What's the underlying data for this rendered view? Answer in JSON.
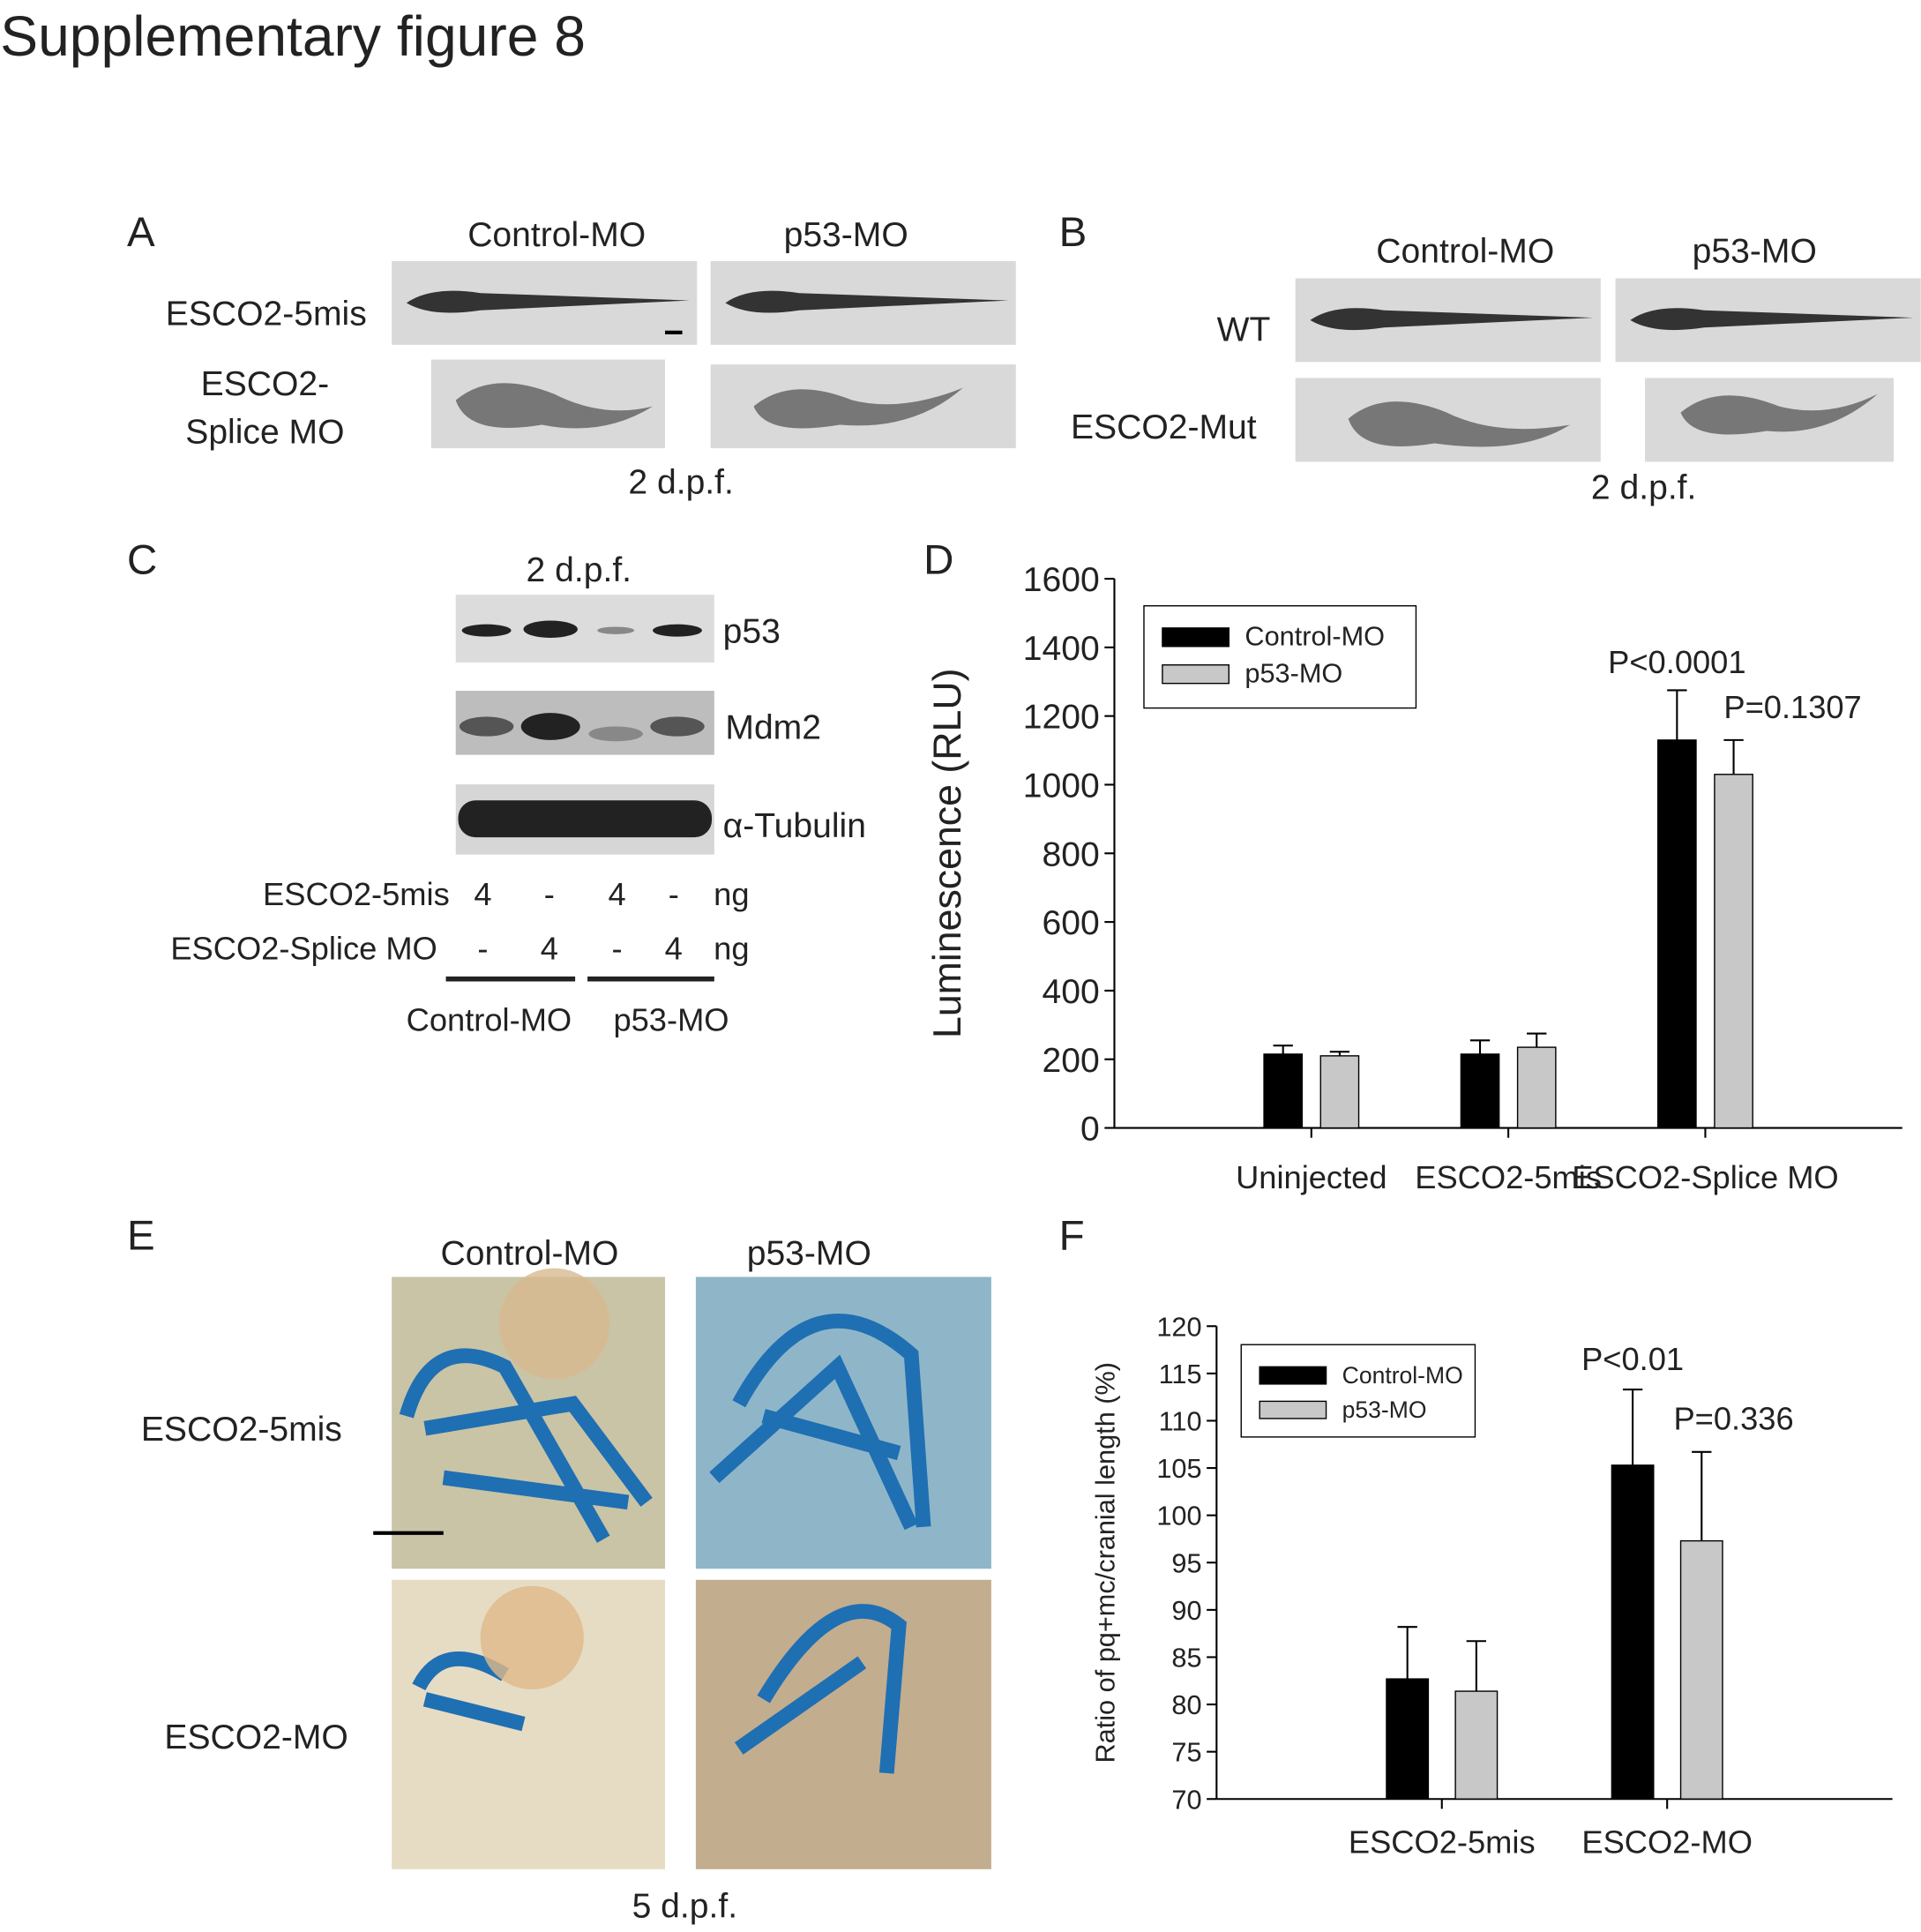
{
  "title": "Supplementary figure 8",
  "panel_a": {
    "letter": "A",
    "columns": [
      "Control-MO",
      "p53-MO"
    ],
    "rows": [
      "ESCO2-5mis",
      "ESCO2-",
      "Splice MO"
    ],
    "caption": "2 d.p.f."
  },
  "panel_b": {
    "letter": "B",
    "columns": [
      "Control-MO",
      "p53-MO"
    ],
    "rows": [
      "WT",
      "ESCO2-Mut"
    ],
    "caption": "2 d.p.f."
  },
  "panel_c": {
    "letter": "C",
    "caption": "2 d.p.f.",
    "bands": [
      "p53",
      "Mdm2",
      "α-Tubulin"
    ],
    "rows": [
      {
        "label": "ESCO2-5mis",
        "cells": [
          "4",
          "-",
          "4",
          "-",
          "ng"
        ]
      },
      {
        "label": "ESCO2-Splice MO",
        "cells": [
          "-",
          "4",
          "-",
          "4",
          "ng"
        ]
      }
    ],
    "groups": [
      "Control-MO",
      "p53-MO"
    ]
  },
  "panel_d": {
    "letter": "D"
  },
  "panel_e": {
    "letter": "E",
    "columns": [
      "Control-MO",
      "p53-MO"
    ],
    "rows": [
      "ESCO2-5mis",
      "ESCO2-MO"
    ],
    "caption": "5 d.p.f."
  },
  "panel_f": {
    "letter": "F"
  },
  "chart_data": [
    {
      "type": "bar",
      "y_label": "Luminescence (RLU)",
      "categories": [
        "Uninjected",
        "ESCO2-5mis",
        "ESCO2-Splice MO"
      ],
      "series": [
        {
          "name": "Control-MO",
          "color": "#000000",
          "values": [
            215,
            215,
            1130
          ],
          "errors": [
            25,
            40,
            145
          ]
        },
        {
          "name": "p53-MO",
          "color": "#c8c8c8",
          "values": [
            210,
            235,
            1030
          ],
          "errors": [
            12,
            40,
            100
          ]
        }
      ],
      "ylim": [
        0,
        1600
      ],
      "yticks": [
        0,
        200,
        400,
        600,
        800,
        1000,
        1200,
        1400,
        1600
      ],
      "annotations": [
        "P<0.0001",
        "P=0.1307"
      ]
    },
    {
      "type": "bar",
      "y_label": "Ratio of pq+mc/cranial length (%)",
      "categories": [
        "ESCO2-5mis",
        "ESCO2-MO"
      ],
      "series": [
        {
          "name": "Control-MO",
          "color": "#000000",
          "values": [
            82.7,
            105.3
          ],
          "errors": [
            5.5,
            8
          ]
        },
        {
          "name": "p53-MO",
          "color": "#c8c8c8",
          "values": [
            81.4,
            97.3
          ],
          "errors": [
            5.3,
            9.4
          ]
        }
      ],
      "ylim": [
        70,
        120
      ],
      "yticks": [
        70,
        75,
        80,
        85,
        90,
        95,
        100,
        105,
        110,
        115,
        120
      ],
      "annotations": [
        "P<0.01",
        "P=0.336"
      ]
    }
  ]
}
